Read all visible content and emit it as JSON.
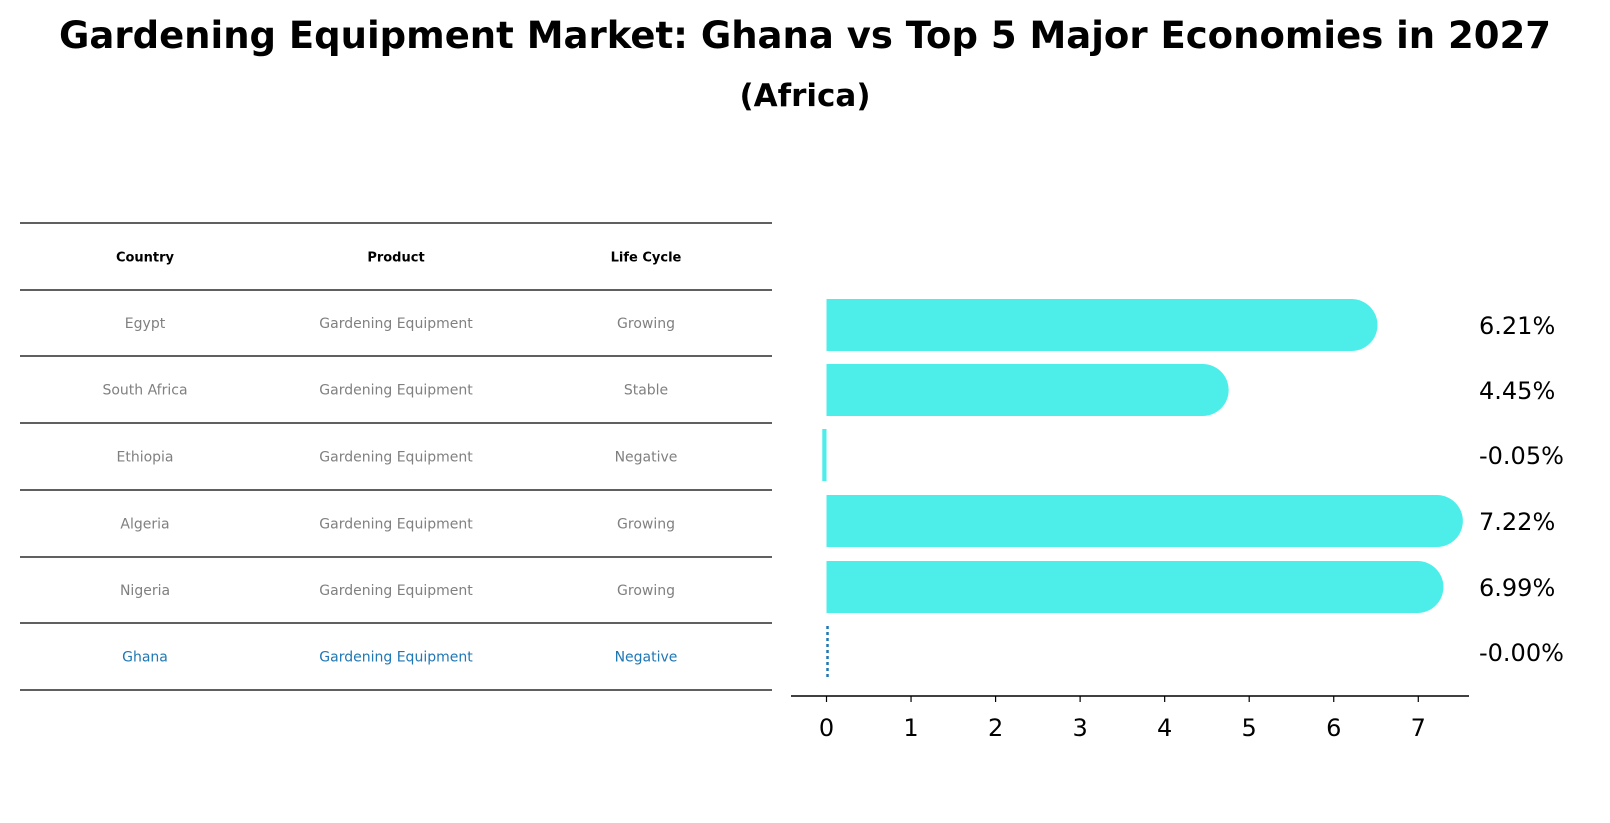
{
  "title": "Gardening Equipment Market: Ghana vs Top 5 Major Economies in 2027",
  "subtitle": "(Africa)",
  "table": {
    "headers": [
      "Country",
      "Product",
      "Life Cycle"
    ],
    "rows": [
      [
        "Egypt",
        "Gardening Equipment",
        "Growing"
      ],
      [
        "South Africa",
        "Gardening Equipment",
        "Stable"
      ],
      [
        "Ethiopia",
        "Gardening Equipment",
        "Negative"
      ],
      [
        "Algeria",
        "Gardening Equipment",
        "Growing"
      ],
      [
        "Nigeria",
        "Gardening Equipment",
        "Growing"
      ],
      [
        "Ghana",
        "Gardening Equipment",
        "Negative"
      ]
    ],
    "highlight_row": "Ghana"
  },
  "colors": {
    "bar": "#4deeea",
    "highlight": "#1f77b4",
    "row_text": "#808080",
    "header_text": "#000000",
    "line": "#000000"
  },
  "chart_data": {
    "type": "bar",
    "orientation": "horizontal",
    "categories": [
      "Egypt",
      "South Africa",
      "Ethiopia",
      "Algeria",
      "Nigeria",
      "Ghana"
    ],
    "values": [
      6.21,
      4.45,
      -0.05,
      7.22,
      6.99,
      -0.0
    ],
    "value_labels": [
      "6.21%",
      "4.45%",
      "-0.05%",
      "7.22%",
      "6.99%",
      "-0.00%"
    ],
    "xticks": [
      0,
      1,
      2,
      3,
      4,
      5,
      6,
      7
    ],
    "xlim": [
      -0.42,
      7.6
    ],
    "grid": false,
    "xlabel": "",
    "ylabel": ""
  }
}
